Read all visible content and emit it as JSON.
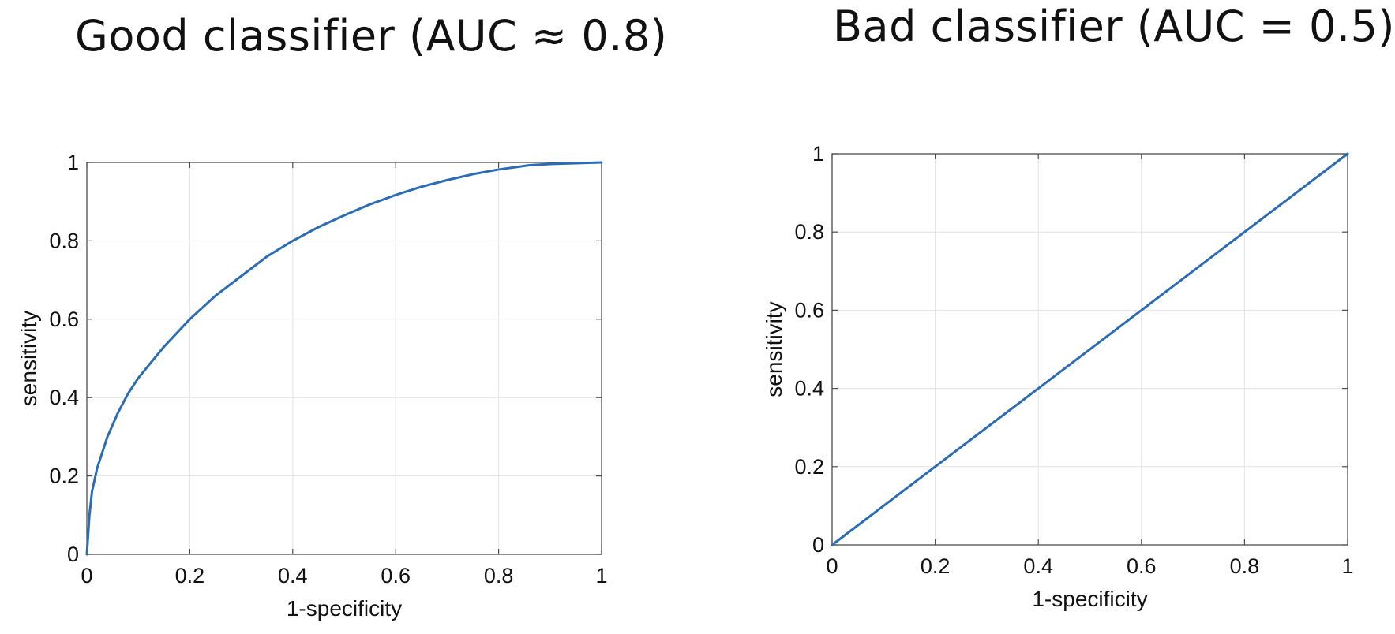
{
  "chart_data": [
    {
      "type": "line",
      "title": "Good classifier (AUC ≈ 0.8)",
      "xlabel": "1-specificity",
      "ylabel": "sensitivity",
      "xlim": [
        0,
        1
      ],
      "ylim": [
        0,
        1
      ],
      "xticks": [
        "0",
        "0.2",
        "0.4",
        "0.6",
        "0.8",
        "1"
      ],
      "yticks": [
        "0",
        "0.2",
        "0.4",
        "0.6",
        "0.8",
        "1"
      ],
      "grid": true,
      "series": [
        {
          "color": "#2b6cb4",
          "x": [
            0,
            0.005,
            0.01,
            0.02,
            0.04,
            0.06,
            0.08,
            0.1,
            0.15,
            0.2,
            0.25,
            0.3,
            0.35,
            0.4,
            0.45,
            0.5,
            0.55,
            0.6,
            0.65,
            0.7,
            0.75,
            0.8,
            0.86,
            0.9,
            0.95,
            1
          ],
          "y": [
            0,
            0.1,
            0.16,
            0.22,
            0.3,
            0.36,
            0.41,
            0.45,
            0.53,
            0.6,
            0.66,
            0.71,
            0.76,
            0.8,
            0.835,
            0.865,
            0.893,
            0.917,
            0.938,
            0.955,
            0.97,
            0.982,
            0.993,
            0.996,
            0.998,
            1
          ]
        }
      ]
    },
    {
      "type": "line",
      "title": "Bad classifier (AUC = 0.5)",
      "xlabel": "1-specificity",
      "ylabel": "sensitivity",
      "xlim": [
        0,
        1
      ],
      "ylim": [
        0,
        1
      ],
      "xticks": [
        "0",
        "0.2",
        "0.4",
        "0.6",
        "0.8",
        "1"
      ],
      "yticks": [
        "0",
        "0.2",
        "0.4",
        "0.6",
        "0.8",
        "1"
      ],
      "grid": true,
      "series": [
        {
          "color": "#2b6cb4",
          "x": [
            0,
            1
          ],
          "y": [
            0,
            1
          ]
        }
      ]
    }
  ]
}
